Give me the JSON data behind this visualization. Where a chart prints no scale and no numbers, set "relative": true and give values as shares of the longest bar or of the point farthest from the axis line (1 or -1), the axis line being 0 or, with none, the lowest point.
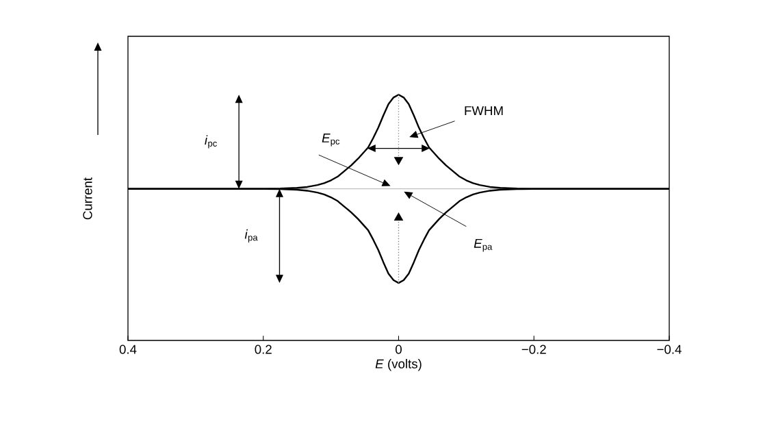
{
  "chart_data": {
    "type": "line",
    "relative": true,
    "xlabel": "*E* (volts)",
    "ylabel": "Current",
    "x": [
      0.4,
      0.3,
      0.2,
      0.175,
      0.15,
      0.135,
      0.12,
      0.11,
      0.1,
      0.09,
      0.08,
      0.07,
      0.06,
      0.045,
      0.0375,
      0.03,
      0.0225,
      0.015,
      0.0075,
      0,
      -0.0075,
      -0.015,
      -0.0225,
      -0.03,
      -0.0375,
      -0.045,
      -0.06,
      -0.07,
      -0.08,
      -0.09,
      -0.1,
      -0.11,
      -0.12,
      -0.135,
      -0.15,
      -0.175,
      -0.2,
      -0.3,
      -0.4
    ],
    "series": [
      {
        "color": "#000000",
        "values": [
          0,
          0,
          0,
          0.003,
          0.01,
          0.02,
          0.04,
          0.06,
          0.09,
          0.13,
          0.19,
          0.25,
          0.32,
          0.44,
          0.54,
          0.65,
          0.78,
          0.9,
          0.97,
          1,
          0.97,
          0.9,
          0.78,
          0.65,
          0.54,
          0.44,
          0.32,
          0.25,
          0.19,
          0.13,
          0.09,
          0.06,
          0.04,
          0.02,
          0.01,
          0.003,
          0,
          0,
          0
        ]
      },
      {
        "color": "#000000",
        "values": [
          0,
          0,
          0,
          -0.003,
          -0.01,
          -0.02,
          -0.04,
          -0.06,
          -0.09,
          -0.13,
          -0.19,
          -0.25,
          -0.32,
          -0.44,
          -0.54,
          -0.65,
          -0.78,
          -0.9,
          -0.97,
          -1,
          -0.97,
          -0.9,
          -0.78,
          -0.65,
          -0.54,
          -0.44,
          -0.32,
          -0.25,
          -0.19,
          -0.13,
          -0.09,
          -0.06,
          -0.04,
          -0.02,
          -0.01,
          -0.003,
          0,
          0,
          0
        ]
      }
    ],
    "marker": "none",
    "xlim": [
      0.4,
      -0.4
    ],
    "xticks": [
      0.4,
      0.2,
      0,
      {
        "value": -0.2,
        "label": "−0.2"
      },
      {
        "value": -0.4,
        "label": "−0.4"
      }
    ],
    "ref_lines": [
      {
        "axis": "y",
        "value": 0,
        "color": "#999999"
      }
    ],
    "annotations": [
      "*i*$_{pc}$",
      "*i*$_{pa}$",
      "*E*$_{pc}$",
      "*E*$_{pa}$",
      "FWHM"
    ]
  }
}
